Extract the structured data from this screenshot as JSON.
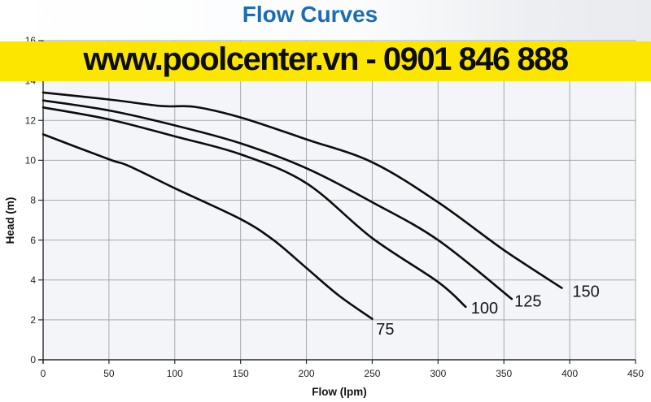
{
  "page": {
    "title_color": "#1b6cb5",
    "banner": {
      "text": "www.poolcenter.vn - 0901 846 888",
      "bg_color": "#fce600",
      "text_color": "#0d0d0d"
    }
  },
  "chart_data": {
    "type": "line",
    "title": "Flow Curves",
    "xlabel": "Flow (lpm)",
    "ylabel": "Head (m)",
    "xlim": [
      0,
      450
    ],
    "ylim": [
      0,
      16
    ],
    "x_ticks": [
      0,
      50,
      100,
      150,
      200,
      250,
      300,
      350,
      400,
      450
    ],
    "y_ticks": [
      0,
      2,
      4,
      6,
      8,
      10,
      12,
      14,
      16
    ],
    "grid": true,
    "legend": "curve-end-labels",
    "plot_bg": "#f3f5f8",
    "grid_color": "#a6a9ad",
    "axis_color": "#2a2a2a",
    "line_color": "#0c0c0c",
    "series": [
      {
        "name": "75",
        "points": [
          [
            0,
            11.3
          ],
          [
            50,
            10.05
          ],
          [
            65,
            9.72
          ],
          [
            100,
            8.6
          ],
          [
            150,
            7.05
          ],
          [
            175,
            6.0
          ],
          [
            200,
            4.6
          ],
          [
            225,
            3.2
          ],
          [
            250,
            2.05
          ]
        ],
        "label_pos": {
          "flow": 253,
          "head": 1.55
        }
      },
      {
        "name": "100",
        "points": [
          [
            0,
            12.65
          ],
          [
            50,
            12.05
          ],
          [
            100,
            11.2
          ],
          [
            150,
            10.3
          ],
          [
            200,
            8.85
          ],
          [
            250,
            6.1
          ],
          [
            300,
            3.9
          ],
          [
            321,
            2.65
          ]
        ],
        "label_pos": {
          "flow": 325,
          "head": 2.6
        }
      },
      {
        "name": "125",
        "points": [
          [
            0,
            13.0
          ],
          [
            50,
            12.5
          ],
          [
            100,
            11.75
          ],
          [
            150,
            10.85
          ],
          [
            200,
            9.6
          ],
          [
            250,
            7.9
          ],
          [
            300,
            6.0
          ],
          [
            356,
            3.05
          ]
        ],
        "label_pos": {
          "flow": 358,
          "head": 2.95
        }
      },
      {
        "name": "150",
        "points": [
          [
            0,
            13.4
          ],
          [
            50,
            13.05
          ],
          [
            90,
            12.72
          ],
          [
            115,
            12.68
          ],
          [
            150,
            12.15
          ],
          [
            200,
            11.05
          ],
          [
            250,
            9.9
          ],
          [
            300,
            7.9
          ],
          [
            350,
            5.5
          ],
          [
            394,
            3.6
          ]
        ],
        "label_pos": {
          "flow": 402,
          "head": 3.45
        }
      }
    ]
  }
}
